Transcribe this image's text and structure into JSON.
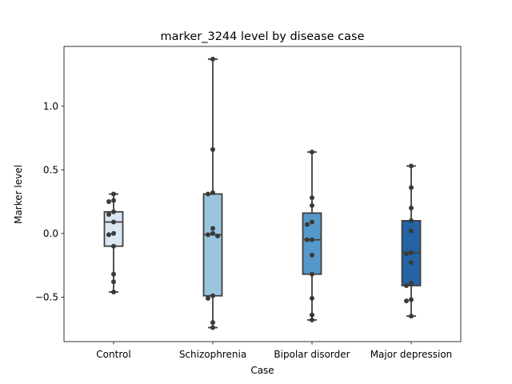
{
  "chart_data": {
    "type": "box",
    "title": "marker_3244 level by disease case",
    "xlabel": "Case",
    "ylabel": "Marker level",
    "ylim": [
      -0.85,
      1.47
    ],
    "yticks": [
      -0.5,
      0.0,
      0.5,
      1.0
    ],
    "ytick_labels": [
      "−0.5",
      "0.0",
      "0.5",
      "1.0"
    ],
    "grid": false,
    "categories": [
      "Control",
      "Schizophrenia",
      "Bipolar disorder",
      "Major depression"
    ],
    "boxes": [
      {
        "color": "#dbe7f3",
        "min": -0.46,
        "q1": -0.1,
        "median": 0.09,
        "q3": 0.17,
        "max": 0.31,
        "points": [
          0.31,
          0.26,
          0.25,
          0.17,
          0.15,
          0.09,
          0.0,
          -0.01,
          -0.1,
          -0.32,
          -0.38,
          -0.46
        ]
      },
      {
        "color": "#9ac5df",
        "min": -0.74,
        "q1": -0.49,
        "median": -0.01,
        "q3": 0.31,
        "max": 1.37,
        "points": [
          1.37,
          0.66,
          0.32,
          0.31,
          0.04,
          0.0,
          -0.01,
          -0.02,
          -0.49,
          -0.51,
          -0.7,
          -0.74
        ]
      },
      {
        "color": "#5499c9",
        "min": -0.68,
        "q1": -0.32,
        "median": -0.05,
        "q3": 0.16,
        "max": 0.64,
        "points": [
          0.64,
          0.28,
          0.22,
          0.09,
          0.07,
          -0.05,
          -0.05,
          -0.17,
          -0.32,
          -0.51,
          -0.64,
          -0.68
        ]
      },
      {
        "color": "#2363a6",
        "min": -0.65,
        "q1": -0.41,
        "median": -0.15,
        "q3": 0.1,
        "max": 0.53,
        "points": [
          0.53,
          0.36,
          0.2,
          0.1,
          0.02,
          -0.15,
          -0.16,
          -0.23,
          -0.39,
          -0.41,
          -0.52,
          -0.53,
          -0.65
        ]
      }
    ]
  }
}
